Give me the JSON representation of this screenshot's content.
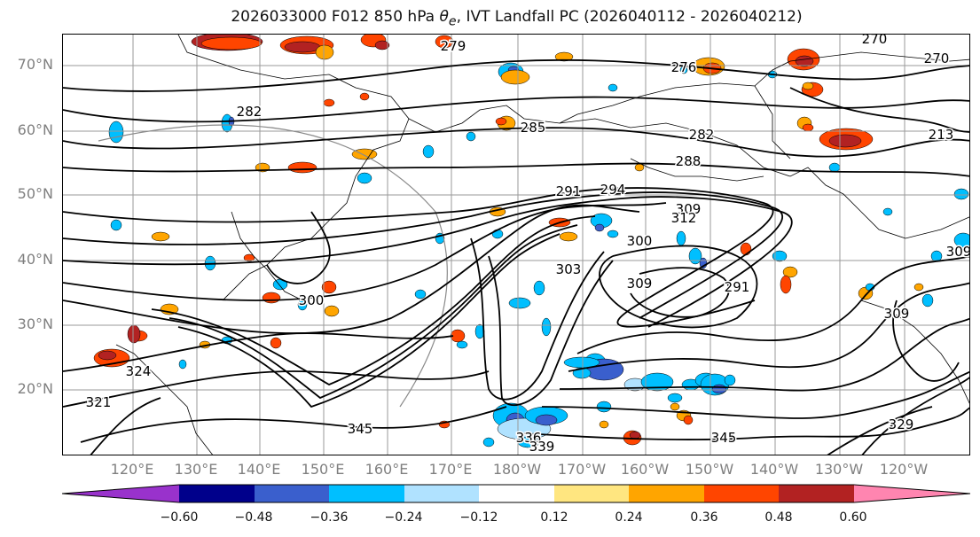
{
  "title": {
    "run": "2026033000",
    "forecast": "F012",
    "level": "850 hPa",
    "variable_symbol": "θ",
    "variable_subscript": "e",
    "description": "IVT Landfall PC (2026040112 - 2026040212)"
  },
  "map": {
    "lat_labels": [
      "70°N",
      "60°N",
      "50°N",
      "40°N",
      "30°N",
      "20°N"
    ],
    "lon_labels": [
      "120°E",
      "130°E",
      "140°E",
      "150°E",
      "160°E",
      "170°E",
      "180°W",
      "170°W",
      "160°W",
      "150°W",
      "140°W",
      "130°W",
      "120°W"
    ],
    "contour_labels": [
      "279",
      "276",
      "270",
      "270",
      "282",
      "285",
      "282",
      "213",
      "288",
      "291",
      "294",
      "309",
      "312",
      "300",
      "303",
      "309",
      "291",
      "309",
      "309",
      "300",
      "345",
      "336",
      "339",
      "345",
      "329",
      "324",
      "321"
    ],
    "grid": true,
    "contour_color": "#000000"
  },
  "colorbar": {
    "ticks": [
      "−0.60",
      "−0.48",
      "−0.36",
      "−0.24",
      "−0.12",
      "0.12",
      "0.24",
      "0.36",
      "0.48",
      "0.60"
    ],
    "colors": [
      "#9932CC",
      "#00008B",
      "#3A5FCD",
      "#00BFFF",
      "#B0E2FF",
      "#FFFFFF",
      "#FFE680",
      "#FFA500",
      "#FF4500",
      "#B22222",
      "#FF85B0"
    ],
    "extend": "both"
  }
}
